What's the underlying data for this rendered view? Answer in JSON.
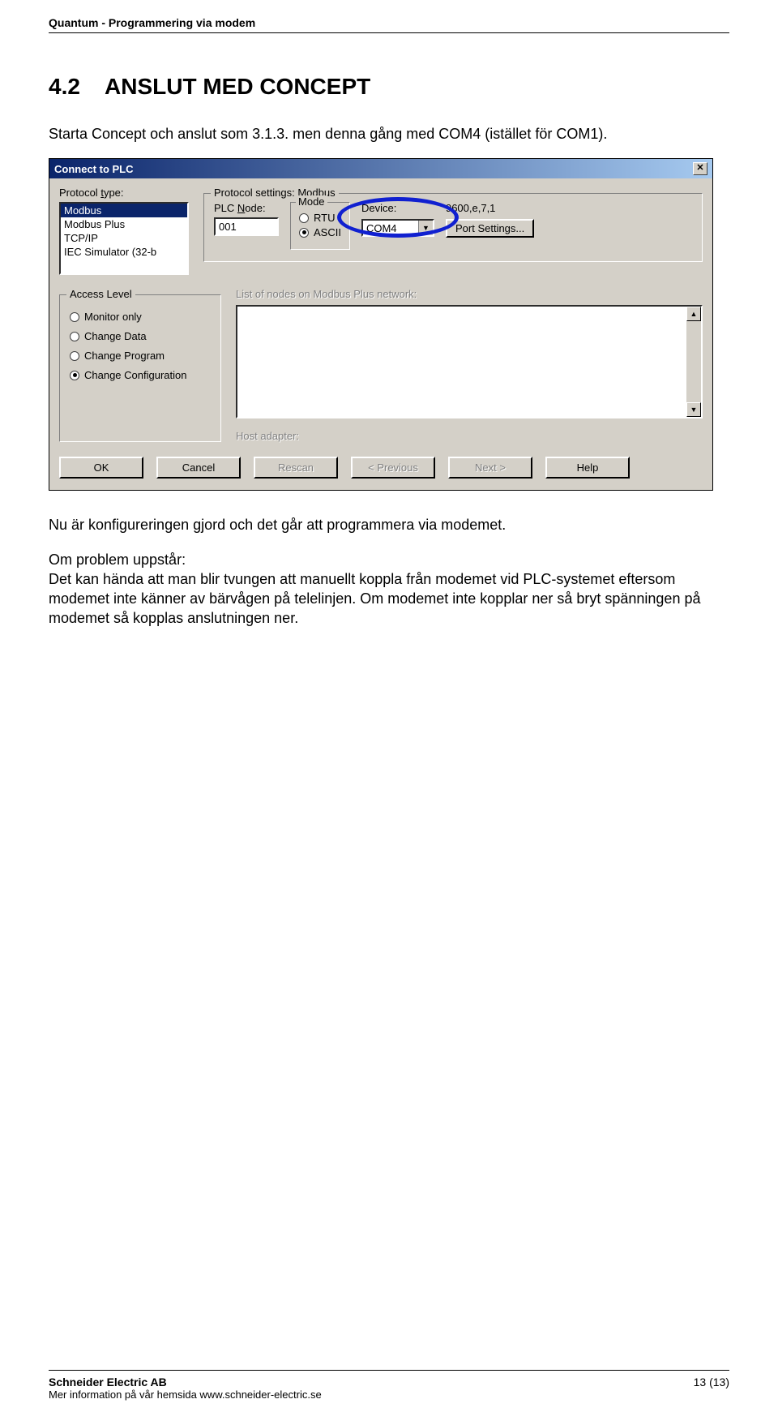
{
  "doc_header": "Quantum - Programmering via modem",
  "section": {
    "number": "4.2",
    "title": "ANSLUT MED CONCEPT"
  },
  "intro": "Starta Concept och anslut som 3.1.3. men denna gång med COM4 (istället för COM1).",
  "dialog": {
    "title": "Connect to PLC",
    "protocol_type_label": "Protocol type:",
    "protocol_types": [
      "Modbus",
      "Modbus Plus",
      "TCP/IP",
      "IEC Simulator (32-b"
    ],
    "protocol_type_selected": "Modbus",
    "protocol_settings_legend": "Protocol settings: Modbus",
    "plc_node_label": "PLC Node:",
    "plc_node_value": "001",
    "mode_legend": "Mode",
    "mode_rtu": "RTU",
    "mode_ascii": "ASCII",
    "mode_selected": "ASCII",
    "device_label": "Device:",
    "device_value": "COM4",
    "port_rate": "9600,e,7,1",
    "port_settings_btn": "Port Settings...",
    "access_legend": "Access Level",
    "access_options": [
      "Monitor only",
      "Change Data",
      "Change Program",
      "Change Configuration"
    ],
    "access_selected": "Change Configuration",
    "nodes_label": "List of nodes on Modbus Plus network:",
    "host_adapter_label": "Host adapter:",
    "buttons": {
      "ok": "OK",
      "cancel": "Cancel",
      "rescan": "Rescan",
      "previous": "< Previous",
      "next": "Next >",
      "help": "Help"
    }
  },
  "after1": "Nu är konfigureringen gjord och det går att programmera via modemet.",
  "after2_title": "Om problem uppstår:",
  "after2": "Det kan hända att man blir tvungen att manuellt koppla från modemet vid PLC-systemet eftersom modemet inte känner av bärvågen på telelinjen. Om modemet inte kopplar ner så bryt spänningen på modemet så kopplas anslutningen ner.",
  "footer": {
    "company": "Schneider Electric AB",
    "info": "Mer information på vår hemsida www.schneider-electric.se",
    "page": "13 (13)"
  },
  "colors": {
    "titlebar_start": "#0a246a",
    "titlebar_end": "#a6caf0",
    "dialog_bg": "#d4d0c8",
    "highlight_ring": "#1020d0"
  }
}
